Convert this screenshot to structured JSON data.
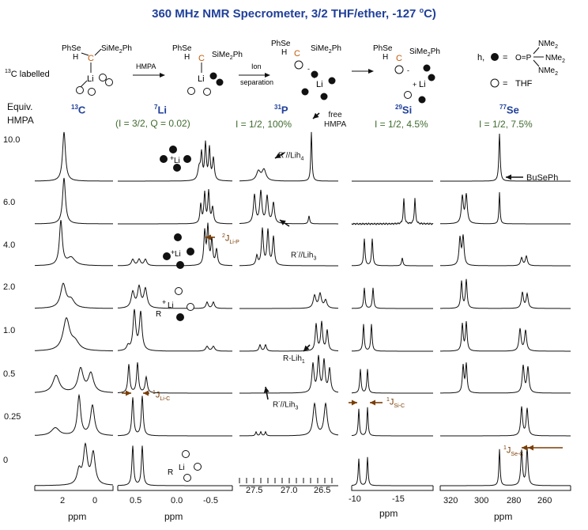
{
  "title": "360 MHz NMR Specrometer, 3/2 THF/ether, -127 ",
  "title_deg": "o",
  "title_end": "C)",
  "scheme": {
    "labelled_sup": "13",
    "labelled": "C labelled",
    "arrow1": "HMPA",
    "arrow2a": "Ion",
    "arrow2b": "separation",
    "phse": "PhSe",
    "h": "H",
    "c": "C",
    "sime2ph": "SiMe",
    "sime2ph_sub": "2",
    "sime2ph_end": "Ph",
    "li": "Li",
    "plus": "+",
    "minus": "-",
    "legend_h": "h,",
    "legend_eq": "=",
    "nme2": "NMe",
    "nme2_sub": "2",
    "op": "O=P",
    "thf": "THF"
  },
  "columns": [
    {
      "nucleus_mass": "13",
      "nucleus": "C",
      "params": ""
    },
    {
      "nucleus_mass": "7",
      "nucleus": "Li",
      "params": "(I = 3/2, Q = 0.02)"
    },
    {
      "nucleus_mass": "31",
      "nucleus": "P",
      "params": "I = 1/2, 100%"
    },
    {
      "nucleus_mass": "29",
      "nucleus": "Si",
      "params": "I = 1/2, 4.5%"
    },
    {
      "nucleus_mass": "77",
      "nucleus": "Se",
      "params": "I = 1/2, 7.5%"
    }
  ],
  "equiv_header": [
    "Equiv.",
    "HMPA"
  ],
  "rows": [
    "10.0",
    "6.0",
    "4.0",
    "2.0",
    "1.0",
    "0.5",
    "0.25",
    "0"
  ],
  "axes": [
    {
      "ticks": [
        "2",
        "0"
      ],
      "unit": "ppm"
    },
    {
      "ticks": [
        "0.5",
        "0.0",
        "-0.5"
      ],
      "unit": "ppm"
    },
    {
      "ticks": [
        "27.5",
        "27.0",
        "26.5"
      ],
      "unit": ""
    },
    {
      "ticks": [
        "-10",
        "-15"
      ],
      "unit": "ppm"
    },
    {
      "ticks": [
        "320",
        "300",
        "280",
        "260"
      ],
      "unit": "ppm"
    }
  ],
  "annotations": {
    "free_hmpa": [
      "free",
      "HMPA"
    ],
    "r_lih4": "R",
    "r_lih4_b": "//Lih",
    "r_lih4_sub": "4",
    "r_lih3_b_sub": "3",
    "r_lih1": "R-Lih",
    "r_lih1_sub": "1",
    "busephe": "BuSePh",
    "j_li_p": "J",
    "j_li_p_sup": "2",
    "j_li_p_sub": "Li-P",
    "j_li_c_sup": "1",
    "j_li_c_sub": "Li-C",
    "j_si_c_sup": "1",
    "j_si_c_sub": "Si-C",
    "j_se_c_sup": "1",
    "j_se_c_sub": "Se-C"
  },
  "colors": {
    "title": "#1f3f9a",
    "params": "#3f6b2e",
    "coupling": "#7a3d05",
    "carbon": "#c15a0a"
  }
}
